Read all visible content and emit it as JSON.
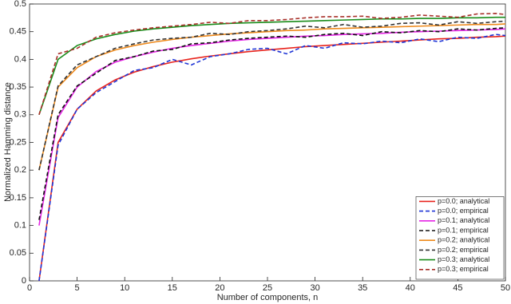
{
  "chart_data": {
    "type": "line",
    "x_label": "Number of components, n",
    "y_label": "Normalized Hamming distance",
    "x": [
      1,
      3,
      5,
      7,
      9,
      11,
      13,
      15,
      17,
      19,
      21,
      23,
      25,
      27,
      29,
      31,
      33,
      35,
      37,
      39,
      41,
      43,
      45,
      47,
      49,
      50
    ],
    "xlim": [
      0,
      50
    ],
    "xticks": [
      0,
      5,
      10,
      15,
      20,
      25,
      30,
      35,
      40,
      45,
      50
    ],
    "ylim": [
      0,
      0.5
    ],
    "yticks": [
      0,
      0.05,
      0.1,
      0.15,
      0.2,
      0.25,
      0.3,
      0.35,
      0.4,
      0.45,
      0.5
    ],
    "legend": "lower right",
    "grid": false,
    "series": [
      {
        "name": "p=0.0; analytical",
        "color": "#e8231c",
        "dash": false,
        "values": [
          0,
          0.25,
          0.31,
          0.343,
          0.363,
          0.377,
          0.387,
          0.395,
          0.401,
          0.406,
          0.41,
          0.414,
          0.417,
          0.42,
          0.423,
          0.425,
          0.427,
          0.429,
          0.431,
          0.433,
          0.435,
          0.437,
          0.438,
          0.44,
          0.441,
          0.442
        ]
      },
      {
        "name": "p=0.0; empirical",
        "color": "#1f35d6",
        "dash": true,
        "values": [
          0,
          0.245,
          0.31,
          0.34,
          0.36,
          0.38,
          0.385,
          0.4,
          0.39,
          0.405,
          0.41,
          0.418,
          0.42,
          0.41,
          0.425,
          0.42,
          0.43,
          0.428,
          0.433,
          0.43,
          0.437,
          0.432,
          0.44,
          0.438,
          0.445,
          0.443
        ]
      },
      {
        "name": "p=0.1; analytical",
        "color": "#e525e5",
        "dash": false,
        "values": [
          0.1,
          0.295,
          0.35,
          0.378,
          0.395,
          0.405,
          0.413,
          0.42,
          0.425,
          0.429,
          0.433,
          0.436,
          0.438,
          0.44,
          0.442,
          0.443,
          0.445,
          0.446,
          0.447,
          0.449,
          0.45,
          0.451,
          0.452,
          0.453,
          0.454,
          0.455
        ]
      },
      {
        "name": "p=0.1; empirical",
        "color": "#111111",
        "dash": true,
        "values": [
          0.11,
          0.3,
          0.352,
          0.375,
          0.398,
          0.405,
          0.415,
          0.418,
          0.428,
          0.43,
          0.435,
          0.438,
          0.44,
          0.442,
          0.44,
          0.445,
          0.447,
          0.443,
          0.45,
          0.448,
          0.452,
          0.45,
          0.455,
          0.453,
          0.456,
          0.457
        ]
      },
      {
        "name": "p=0.2; analytical",
        "color": "#ee8a1c",
        "dash": false,
        "values": [
          0.2,
          0.35,
          0.385,
          0.405,
          0.417,
          0.425,
          0.431,
          0.436,
          0.44,
          0.443,
          0.446,
          0.448,
          0.45,
          0.452,
          0.453,
          0.455,
          0.456,
          0.457,
          0.458,
          0.459,
          0.46,
          0.461,
          0.462,
          0.463,
          0.463,
          0.464
        ]
      },
      {
        "name": "p=0.2; empirical",
        "color": "#333333",
        "dash": true,
        "values": [
          0.2,
          0.352,
          0.39,
          0.405,
          0.42,
          0.428,
          0.435,
          0.438,
          0.44,
          0.447,
          0.445,
          0.45,
          0.452,
          0.455,
          0.46,
          0.457,
          0.463,
          0.458,
          0.46,
          0.465,
          0.466,
          0.462,
          0.468,
          0.465,
          0.468,
          0.469
        ]
      },
      {
        "name": "p=0.3; analytical",
        "color": "#1a8c1a",
        "dash": false,
        "values": [
          0.3,
          0.4,
          0.425,
          0.437,
          0.445,
          0.451,
          0.455,
          0.458,
          0.461,
          0.463,
          0.465,
          0.466,
          0.467,
          0.468,
          0.469,
          0.47,
          0.471,
          0.472,
          0.473,
          0.473,
          0.474,
          0.474,
          0.475,
          0.475,
          0.476,
          0.476
        ]
      },
      {
        "name": "p=0.3; empirical",
        "color": "#a8302a",
        "dash": true,
        "values": [
          0.3,
          0.41,
          0.42,
          0.44,
          0.448,
          0.453,
          0.457,
          0.46,
          0.463,
          0.467,
          0.465,
          0.47,
          0.47,
          0.472,
          0.475,
          0.477,
          0.477,
          0.478,
          0.474,
          0.476,
          0.48,
          0.478,
          0.476,
          0.482,
          0.483,
          0.481
        ]
      }
    ]
  }
}
